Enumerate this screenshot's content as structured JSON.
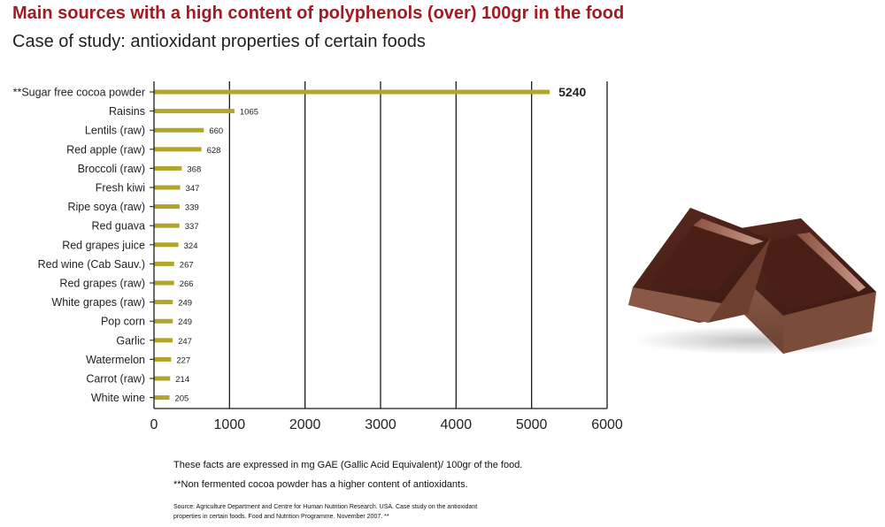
{
  "header": {
    "title": "Main sources with a high content of polyphenols (over) 100gr in the food",
    "subtitle": "Case of study: antioxidant properties of certain foods"
  },
  "notes": {
    "units": "These facts are expressed in mg GAE (Gallic Acid Equivalent)/ 100gr of the food.",
    "footnote": "**Non fermented cocoa powder has a higher content of antioxidants.",
    "source": "Source: Agriculture Department and Centre for Human Nutrition Research. USA. Case study on the antioxidant properties in certain foods. Food and Nutrition Programme. November  2007. **"
  },
  "image": {
    "icon": "chocolate-pieces-photo"
  },
  "chart_data": {
    "type": "bar",
    "orientation": "horizontal",
    "title": "",
    "xlabel": "",
    "ylabel": "",
    "xlim": [
      0,
      6000
    ],
    "xticks": [
      "0",
      "1000",
      "2000",
      "3000",
      "4000",
      "5000",
      "6000"
    ],
    "grid": "vertical",
    "bar_color": "#b3a42a",
    "categories": [
      "**Sugar free cocoa powder",
      "Raisins",
      "Lentils (raw)",
      "Red apple (raw)",
      "Broccoli (raw)",
      "Fresh kiwi",
      "Ripe soya (raw)",
      "Red guava",
      "Red grapes juice",
      "Red wine (Cab Sauv.)",
      "Red grapes (raw)",
      "White grapes (raw)",
      "Pop corn",
      "Garlic",
      "Watermelon",
      "Carrot (raw)",
      "White wine"
    ],
    "values": [
      5240,
      1065,
      660,
      628,
      368,
      347,
      339,
      337,
      324,
      267,
      266,
      249,
      249,
      247,
      227,
      214,
      205
    ],
    "value_labels": [
      "5240",
      "1065",
      "660",
      "628",
      "368",
      "347",
      "339",
      "337",
      "324",
      "267",
      "266",
      "249",
      "249",
      "247",
      "227",
      "214",
      "205"
    ]
  }
}
